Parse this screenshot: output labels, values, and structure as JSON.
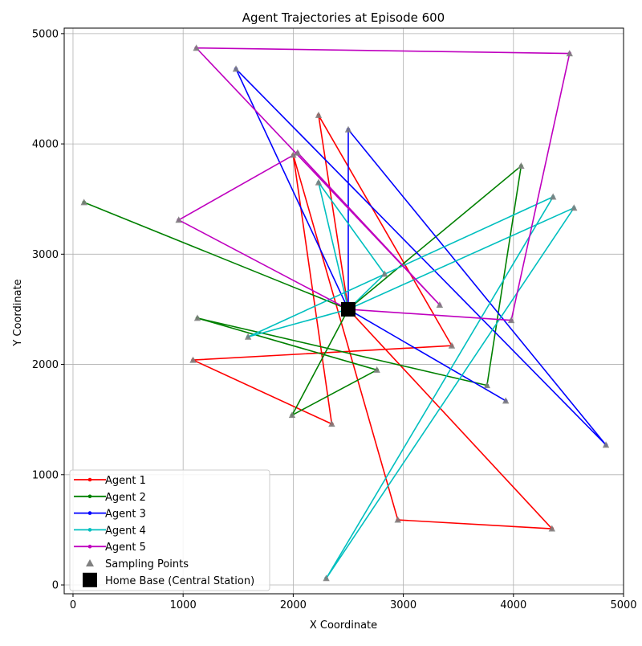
{
  "chart_data": {
    "type": "line",
    "title": "Agent Trajectories at Episode 600",
    "xlabel": "X Coordinate",
    "ylabel": "Y Coordinate",
    "xlim": [
      -80,
      5000
    ],
    "ylim": [
      -80,
      5050
    ],
    "xticks": [
      0,
      1000,
      2000,
      3000,
      4000,
      5000
    ],
    "yticks": [
      0,
      1000,
      2000,
      3000,
      4000,
      5000
    ],
    "grid": true,
    "legend_position": "lower-left",
    "home_base": {
      "name": "Home Base (Central Station)",
      "x": 2500,
      "y": 2500,
      "color": "#000000"
    },
    "sampling_points_label": "Sampling Points",
    "sampling_color": "#808080",
    "series": [
      {
        "name": "Agent 1",
        "color": "#ff0000",
        "points": [
          [
            2500,
            2500
          ],
          [
            2230,
            4260
          ],
          [
            3440,
            2170
          ],
          [
            1090,
            2040
          ],
          [
            2350,
            1460
          ],
          [
            2000,
            3900
          ],
          [
            2950,
            590
          ],
          [
            4350,
            510
          ],
          [
            2500,
            2500
          ]
        ]
      },
      {
        "name": "Agent 2",
        "color": "#008000",
        "points": [
          [
            2500,
            2500
          ],
          [
            100,
            3470
          ],
          [
            2500,
            2500
          ],
          [
            4070,
            3800
          ],
          [
            3760,
            1810
          ],
          [
            1130,
            2420
          ],
          [
            2760,
            1950
          ],
          [
            1990,
            1540
          ],
          [
            2500,
            2500
          ]
        ]
      },
      {
        "name": "Agent 3",
        "color": "#0000ff",
        "points": [
          [
            2500,
            2500
          ],
          [
            2500,
            4130
          ],
          [
            4840,
            1270
          ],
          [
            1480,
            4680
          ],
          [
            2500,
            2500
          ],
          [
            3930,
            1670
          ],
          [
            2500,
            2500
          ]
        ]
      },
      {
        "name": "Agent 4",
        "color": "#00bfbf",
        "points": [
          [
            2500,
            2500
          ],
          [
            4550,
            3420
          ],
          [
            2300,
            60
          ],
          [
            4360,
            3520
          ],
          [
            1590,
            2250
          ],
          [
            2500,
            2500
          ],
          [
            2230,
            3650
          ],
          [
            2830,
            2820
          ],
          [
            2500,
            2500
          ]
        ]
      },
      {
        "name": "Agent 5",
        "color": "#bf00bf",
        "points": [
          [
            2500,
            2500
          ],
          [
            3980,
            2400
          ],
          [
            4510,
            4820
          ],
          [
            1120,
            4870
          ],
          [
            3330,
            2540
          ],
          [
            2040,
            3920
          ],
          [
            960,
            3310
          ],
          [
            2500,
            2500
          ]
        ]
      }
    ]
  }
}
